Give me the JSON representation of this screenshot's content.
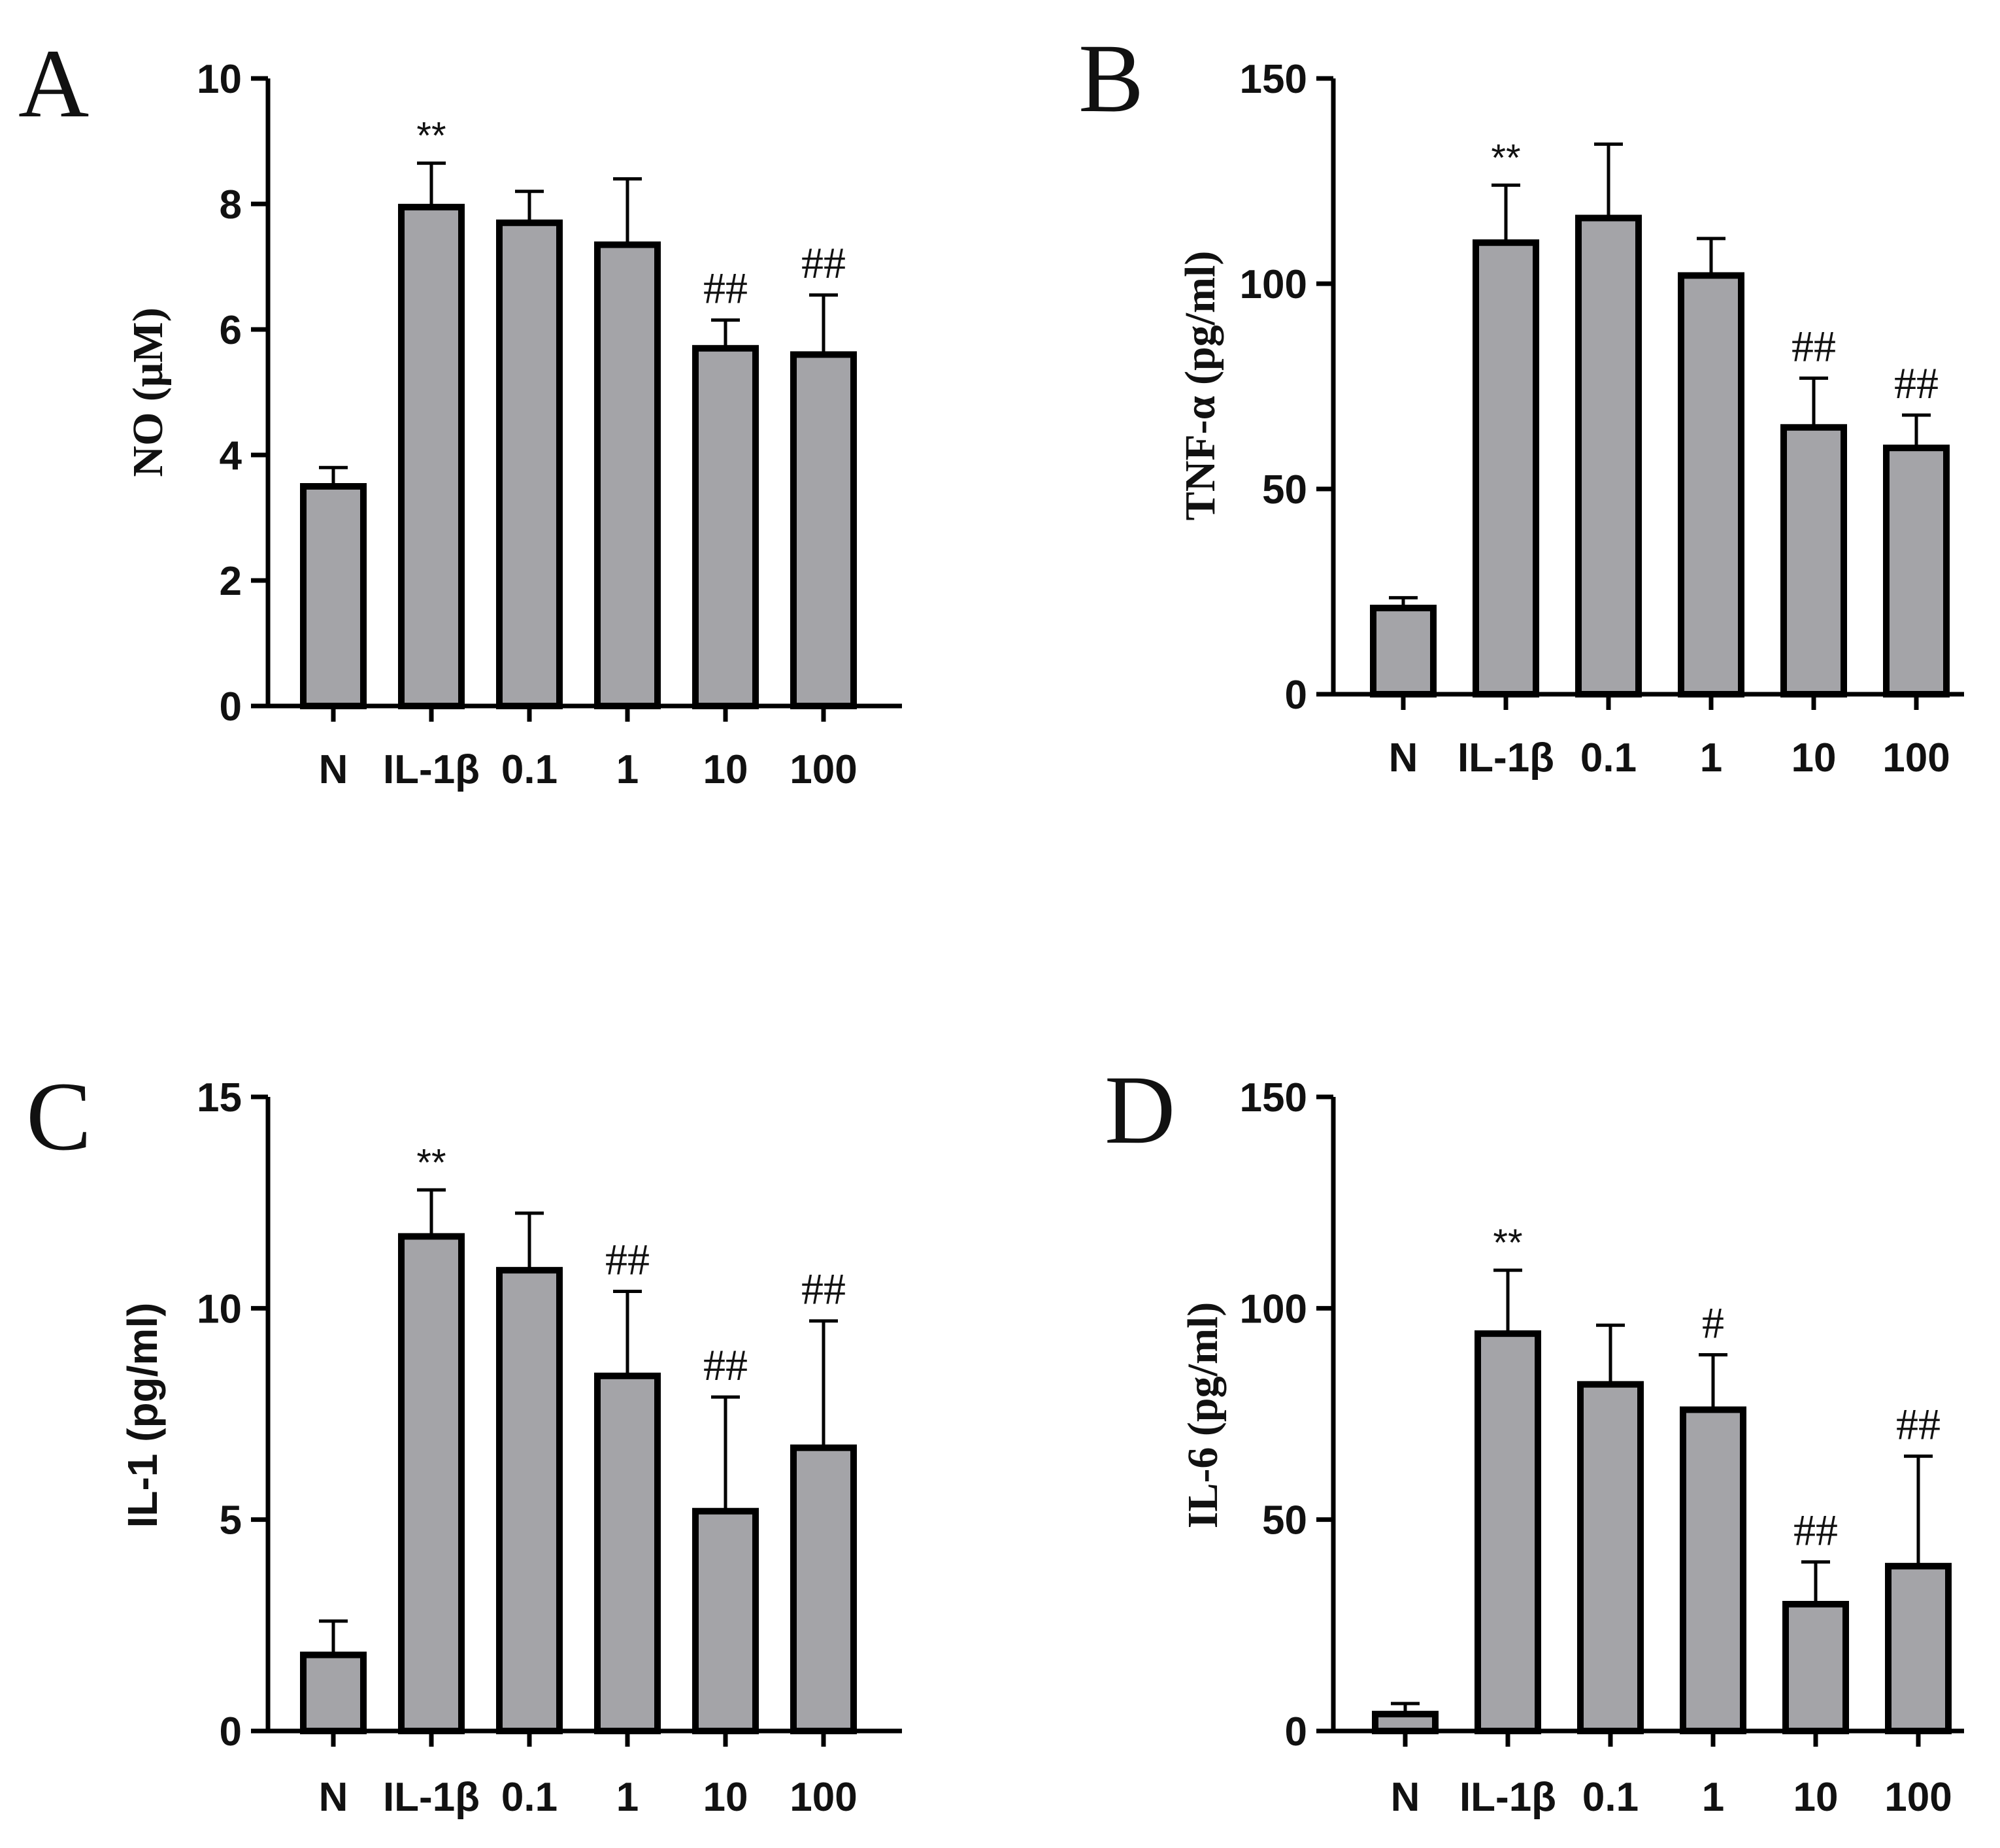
{
  "chart_data": [
    {
      "panel": "A",
      "type": "bar",
      "title": "",
      "xlabel": "",
      "ylabel": "NO (μM)",
      "categories": [
        "N",
        "IL-1β",
        "0.1",
        "1",
        "10",
        "100"
      ],
      "values": [
        3.5,
        7.95,
        7.7,
        7.35,
        5.7,
        5.6
      ],
      "errors": [
        0.3,
        0.7,
        0.5,
        1.05,
        0.45,
        0.95
      ],
      "annotations": [
        "",
        "**",
        "",
        "",
        "##",
        "##"
      ],
      "ylim": [
        0,
        10
      ],
      "yticks": [
        0,
        2,
        4,
        6,
        8,
        10
      ]
    },
    {
      "panel": "B",
      "type": "bar",
      "title": "",
      "xlabel": "",
      "ylabel": "TNF-α (pg/ml)",
      "categories": [
        "N",
        "IL-1β",
        "0.1",
        "1",
        "10",
        "100"
      ],
      "values": [
        21,
        110,
        116,
        102,
        65,
        60
      ],
      "errors": [
        2.5,
        14,
        18,
        9,
        12,
        8
      ],
      "annotations": [
        "",
        "**",
        "",
        "",
        "##",
        "##"
      ],
      "ylim": [
        0,
        150
      ],
      "yticks": [
        0,
        50,
        100,
        150
      ]
    },
    {
      "panel": "C",
      "type": "bar",
      "title": "",
      "xlabel": "",
      "ylabel": "IL-1 (pg/ml)",
      "categories": [
        "N",
        "IL-1β",
        "0.1",
        "1",
        "10",
        "100"
      ],
      "values": [
        1.8,
        11.7,
        10.9,
        8.4,
        5.2,
        6.7
      ],
      "errors": [
        0.8,
        1.1,
        1.35,
        2.0,
        2.7,
        3.0
      ],
      "annotations": [
        "",
        "**",
        "",
        "##",
        "##",
        "##"
      ],
      "ylim": [
        0,
        15
      ],
      "yticks": [
        0,
        5,
        10,
        15
      ]
    },
    {
      "panel": "D",
      "type": "bar",
      "title": "",
      "xlabel": "",
      "ylabel": "IL-6 (pg/ml)",
      "categories": [
        "N",
        "IL-1β",
        "0.1",
        "1",
        "10",
        "100"
      ],
      "values": [
        4,
        94,
        82,
        76,
        30,
        39
      ],
      "errors": [
        2.5,
        15,
        14,
        13,
        10,
        26
      ],
      "annotations": [
        "",
        "**",
        "",
        "#",
        "##",
        "##"
      ],
      "ylim": [
        0,
        150
      ],
      "yticks": [
        0,
        50,
        100,
        150
      ]
    }
  ],
  "colors": {
    "bar_fill": "#a4a4a8",
    "bar_stroke": "#000000"
  }
}
